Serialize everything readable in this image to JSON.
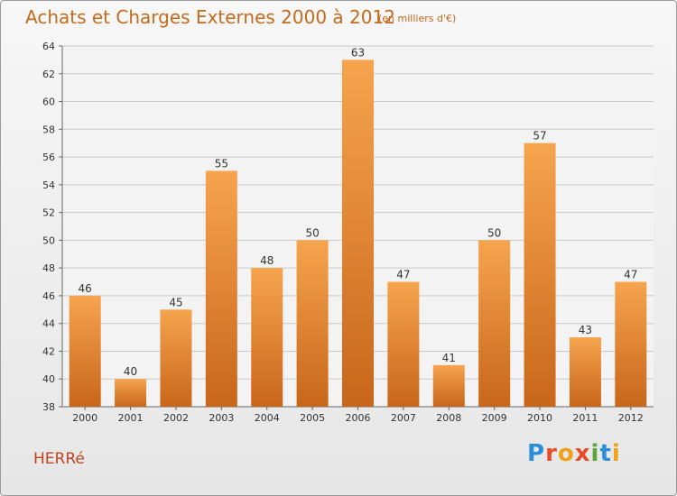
{
  "header": {
    "title": "Achats et Charges Externes 2000 à 2012",
    "subtitle": "(en milliers d'€)"
  },
  "footer": {
    "place": "HERRé",
    "logo": [
      "P",
      "r",
      "o",
      "x",
      "i",
      "t",
      "i"
    ]
  },
  "colors": {
    "bar_top": "#f6a44e",
    "bar_bottom": "#c8661a",
    "title": "#c46a1c",
    "grid": "#c9c9c9"
  },
  "chart_data": {
    "type": "bar",
    "title": "Achats et Charges Externes 2000 à 2012",
    "subtitle": "(en milliers d'€)",
    "xlabel": "",
    "ylabel": "",
    "categories": [
      "2000",
      "2001",
      "2002",
      "2003",
      "2004",
      "2005",
      "2006",
      "2007",
      "2008",
      "2009",
      "2010",
      "2011",
      "2012"
    ],
    "values": [
      46,
      40,
      45,
      55,
      48,
      50,
      63,
      47,
      41,
      50,
      57,
      43,
      47
    ],
    "ylim": [
      38,
      64
    ],
    "yticks": [
      38,
      40,
      42,
      44,
      46,
      48,
      50,
      52,
      54,
      56,
      58,
      60,
      62,
      64
    ],
    "grid": true,
    "legend": "none"
  }
}
